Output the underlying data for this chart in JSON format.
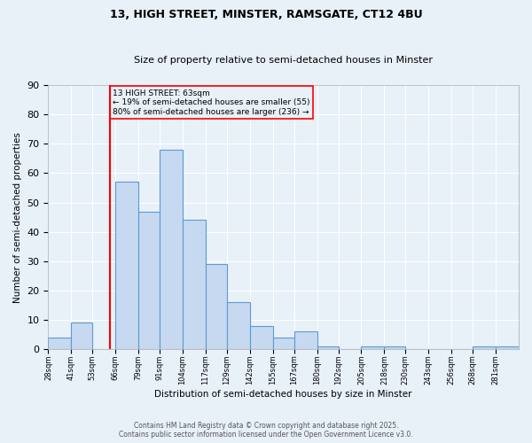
{
  "title_line1": "13, HIGH STREET, MINSTER, RAMSGATE, CT12 4BU",
  "title_line2": "Size of property relative to semi-detached houses in Minster",
  "xlabel": "Distribution of semi-detached houses by size in Minster",
  "ylabel": "Number of semi-detached properties",
  "bins": [
    "28sqm",
    "41sqm",
    "53sqm",
    "66sqm",
    "79sqm",
    "91sqm",
    "104sqm",
    "117sqm",
    "129sqm",
    "142sqm",
    "155sqm",
    "167sqm",
    "180sqm",
    "192sqm",
    "205sqm",
    "218sqm",
    "230sqm",
    "243sqm",
    "256sqm",
    "268sqm",
    "281sqm"
  ],
  "bin_edges": [
    28,
    41,
    53,
    66,
    79,
    91,
    104,
    117,
    129,
    142,
    155,
    167,
    180,
    192,
    205,
    218,
    230,
    243,
    256,
    268,
    281
  ],
  "values": [
    4,
    9,
    0,
    57,
    47,
    68,
    44,
    29,
    16,
    8,
    4,
    6,
    1,
    0,
    1,
    1,
    0,
    0,
    0,
    1,
    1
  ],
  "bar_color": "#c6d9f0",
  "bar_edge_color": "#5b9bd5",
  "property_size": 63,
  "property_label": "13 HIGH STREET: 63sqm",
  "pct_smaller": "19%",
  "n_smaller": 55,
  "pct_larger": "80%",
  "n_larger": 236,
  "vline_color": "red",
  "annotation_box_color": "red",
  "annotation_text_color": "black",
  "ylim": [
    0,
    90
  ],
  "yticks": [
    0,
    10,
    20,
    30,
    40,
    50,
    60,
    70,
    80,
    90
  ],
  "footer_line1": "Contains HM Land Registry data © Crown copyright and database right 2025.",
  "footer_line2": "Contains public sector information licensed under the Open Government Licence v3.0.",
  "background_color": "#e8f0f8"
}
